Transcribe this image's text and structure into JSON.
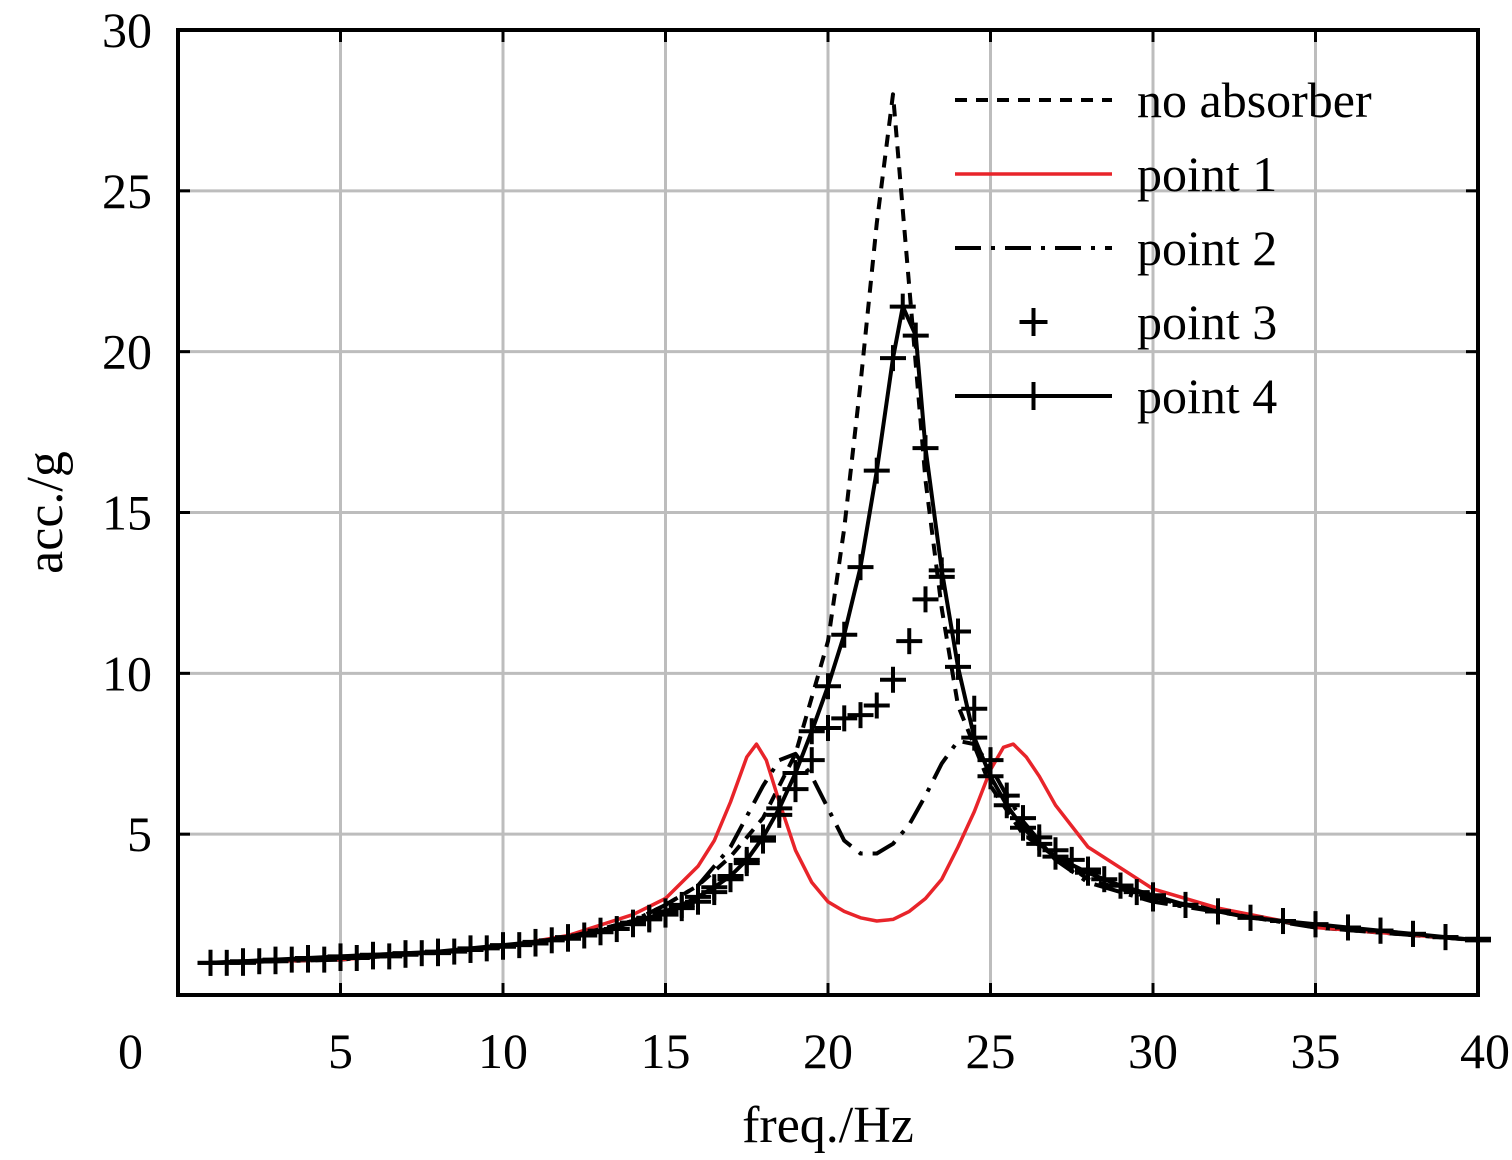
{
  "chart_data": {
    "type": "line",
    "title": "",
    "xlabel": "freq./Hz",
    "ylabel": "acc./g",
    "xlim": [
      0,
      40
    ],
    "ylim": [
      0,
      30
    ],
    "xticks": [
      0,
      5,
      10,
      15,
      20,
      25,
      30,
      35,
      40
    ],
    "yticks": [
      5,
      10,
      15,
      20,
      25,
      30
    ],
    "grid": true,
    "legend_position": "top-right",
    "series": [
      {
        "name": "no absorber",
        "style": "dashed",
        "color": "#000000",
        "x": [
          1,
          5,
          10,
          12,
          14,
          15,
          16,
          17,
          18,
          19,
          20,
          20.5,
          21,
          21.5,
          22,
          22.5,
          23,
          23.5,
          24,
          25,
          26,
          28,
          30,
          35,
          40
        ],
        "y": [
          1.0,
          1.1,
          1.5,
          1.8,
          2.3,
          2.8,
          3.4,
          4.3,
          5.5,
          7.5,
          11.0,
          14.5,
          19.0,
          24.0,
          28.0,
          22.0,
          16.0,
          12.0,
          9.0,
          6.5,
          5.0,
          3.6,
          3.0,
          2.1,
          1.7
        ]
      },
      {
        "name": "point 1",
        "style": "solid",
        "color": "#e8242a",
        "x": [
          1,
          5,
          10,
          12,
          14,
          15,
          16,
          16.5,
          17,
          17.5,
          17.8,
          18.1,
          18.5,
          19,
          19.5,
          20,
          20.5,
          21,
          21.5,
          22,
          22.5,
          23,
          23.5,
          24,
          24.5,
          25,
          25.4,
          25.7,
          26.1,
          26.5,
          27,
          28,
          30,
          32,
          35,
          40
        ],
        "y": [
          1.0,
          1.1,
          1.5,
          1.85,
          2.5,
          3.0,
          4.0,
          4.8,
          6.0,
          7.4,
          7.8,
          7.3,
          6.0,
          4.5,
          3.5,
          2.9,
          2.6,
          2.4,
          2.3,
          2.35,
          2.6,
          3.0,
          3.6,
          4.6,
          5.7,
          7.0,
          7.7,
          7.8,
          7.4,
          6.8,
          5.9,
          4.6,
          3.3,
          2.7,
          2.1,
          1.7
        ]
      },
      {
        "name": "point 2",
        "style": "dashdot",
        "color": "#000000",
        "x": [
          1,
          5,
          10,
          12,
          14,
          15,
          16,
          17,
          18,
          18.5,
          19,
          19.5,
          20,
          20.5,
          21,
          21.5,
          22,
          22.5,
          23,
          23.5,
          24,
          24.5,
          25,
          25.5,
          26,
          27,
          28,
          30,
          35,
          40
        ],
        "y": [
          1.0,
          1.1,
          1.5,
          1.8,
          2.3,
          2.8,
          3.4,
          4.6,
          6.5,
          7.3,
          7.5,
          6.8,
          5.8,
          4.8,
          4.4,
          4.4,
          4.7,
          5.3,
          6.2,
          7.2,
          7.9,
          7.8,
          7.1,
          6.2,
          5.4,
          4.2,
          3.5,
          2.9,
          2.1,
          1.7
        ]
      },
      {
        "name": "point 3",
        "style": "markers",
        "color": "#000000",
        "x": [
          1,
          1.5,
          2,
          2.5,
          3,
          3.5,
          4,
          4.5,
          5,
          5.5,
          6,
          6.5,
          7,
          7.5,
          8,
          8.5,
          9,
          9.5,
          10,
          10.5,
          11,
          11.5,
          12,
          12.5,
          13,
          13.5,
          14,
          14.5,
          15,
          15.5,
          16,
          16.5,
          17,
          17.5,
          18,
          18.5,
          19,
          19.5,
          20,
          20.5,
          21,
          21.5,
          22,
          22.5,
          23,
          23.5,
          24,
          24.5,
          25,
          25.5,
          26,
          26.5,
          27,
          27.5,
          28,
          28.5,
          29,
          29.5,
          30,
          31,
          32,
          33,
          34,
          35,
          36,
          37,
          38,
          39,
          40
        ],
        "y": [
          1.0,
          1.0,
          1.0,
          1.05,
          1.05,
          1.1,
          1.1,
          1.1,
          1.15,
          1.15,
          1.2,
          1.2,
          1.25,
          1.3,
          1.3,
          1.35,
          1.4,
          1.45,
          1.5,
          1.55,
          1.6,
          1.7,
          1.75,
          1.85,
          1.95,
          2.05,
          2.2,
          2.35,
          2.5,
          2.7,
          2.9,
          3.2,
          3.6,
          4.1,
          4.8,
          5.6,
          6.4,
          7.3,
          8.3,
          8.6,
          8.7,
          9.0,
          9.8,
          11.0,
          12.3,
          13.0,
          11.3,
          8.9,
          7.3,
          6.2,
          5.5,
          4.9,
          4.5,
          4.2,
          3.9,
          3.6,
          3.4,
          3.2,
          3.0,
          2.8,
          2.6,
          2.4,
          2.3,
          2.2,
          2.1,
          2.0,
          1.9,
          1.8,
          1.75
        ]
      },
      {
        "name": "point 4",
        "style": "solid-markers",
        "color": "#000000",
        "x": [
          1,
          2,
          3,
          4,
          5,
          6,
          7,
          8,
          9,
          10,
          11,
          12,
          13,
          14,
          14.5,
          15,
          15.5,
          16,
          16.5,
          17,
          17.5,
          18,
          18.5,
          19,
          19.5,
          20,
          20.5,
          21,
          21.5,
          22,
          22.3,
          22.7,
          23,
          23.5,
          24,
          24.5,
          25,
          25.5,
          26,
          26.5,
          27,
          28,
          29,
          30,
          31,
          32,
          33,
          34,
          35,
          36,
          37,
          38,
          39,
          40
        ],
        "y": [
          1.0,
          1.05,
          1.1,
          1.15,
          1.2,
          1.25,
          1.3,
          1.35,
          1.45,
          1.55,
          1.65,
          1.8,
          2.0,
          2.25,
          2.4,
          2.6,
          2.8,
          3.05,
          3.35,
          3.7,
          4.2,
          4.9,
          5.8,
          6.9,
          8.2,
          9.6,
          11.2,
          13.3,
          16.3,
          19.8,
          21.4,
          20.5,
          17.0,
          13.2,
          10.2,
          8.0,
          6.8,
          5.9,
          5.2,
          4.7,
          4.3,
          3.8,
          3.4,
          3.1,
          2.8,
          2.6,
          2.4,
          2.3,
          2.2,
          2.1,
          2.0,
          1.9,
          1.8,
          1.7
        ]
      }
    ]
  }
}
